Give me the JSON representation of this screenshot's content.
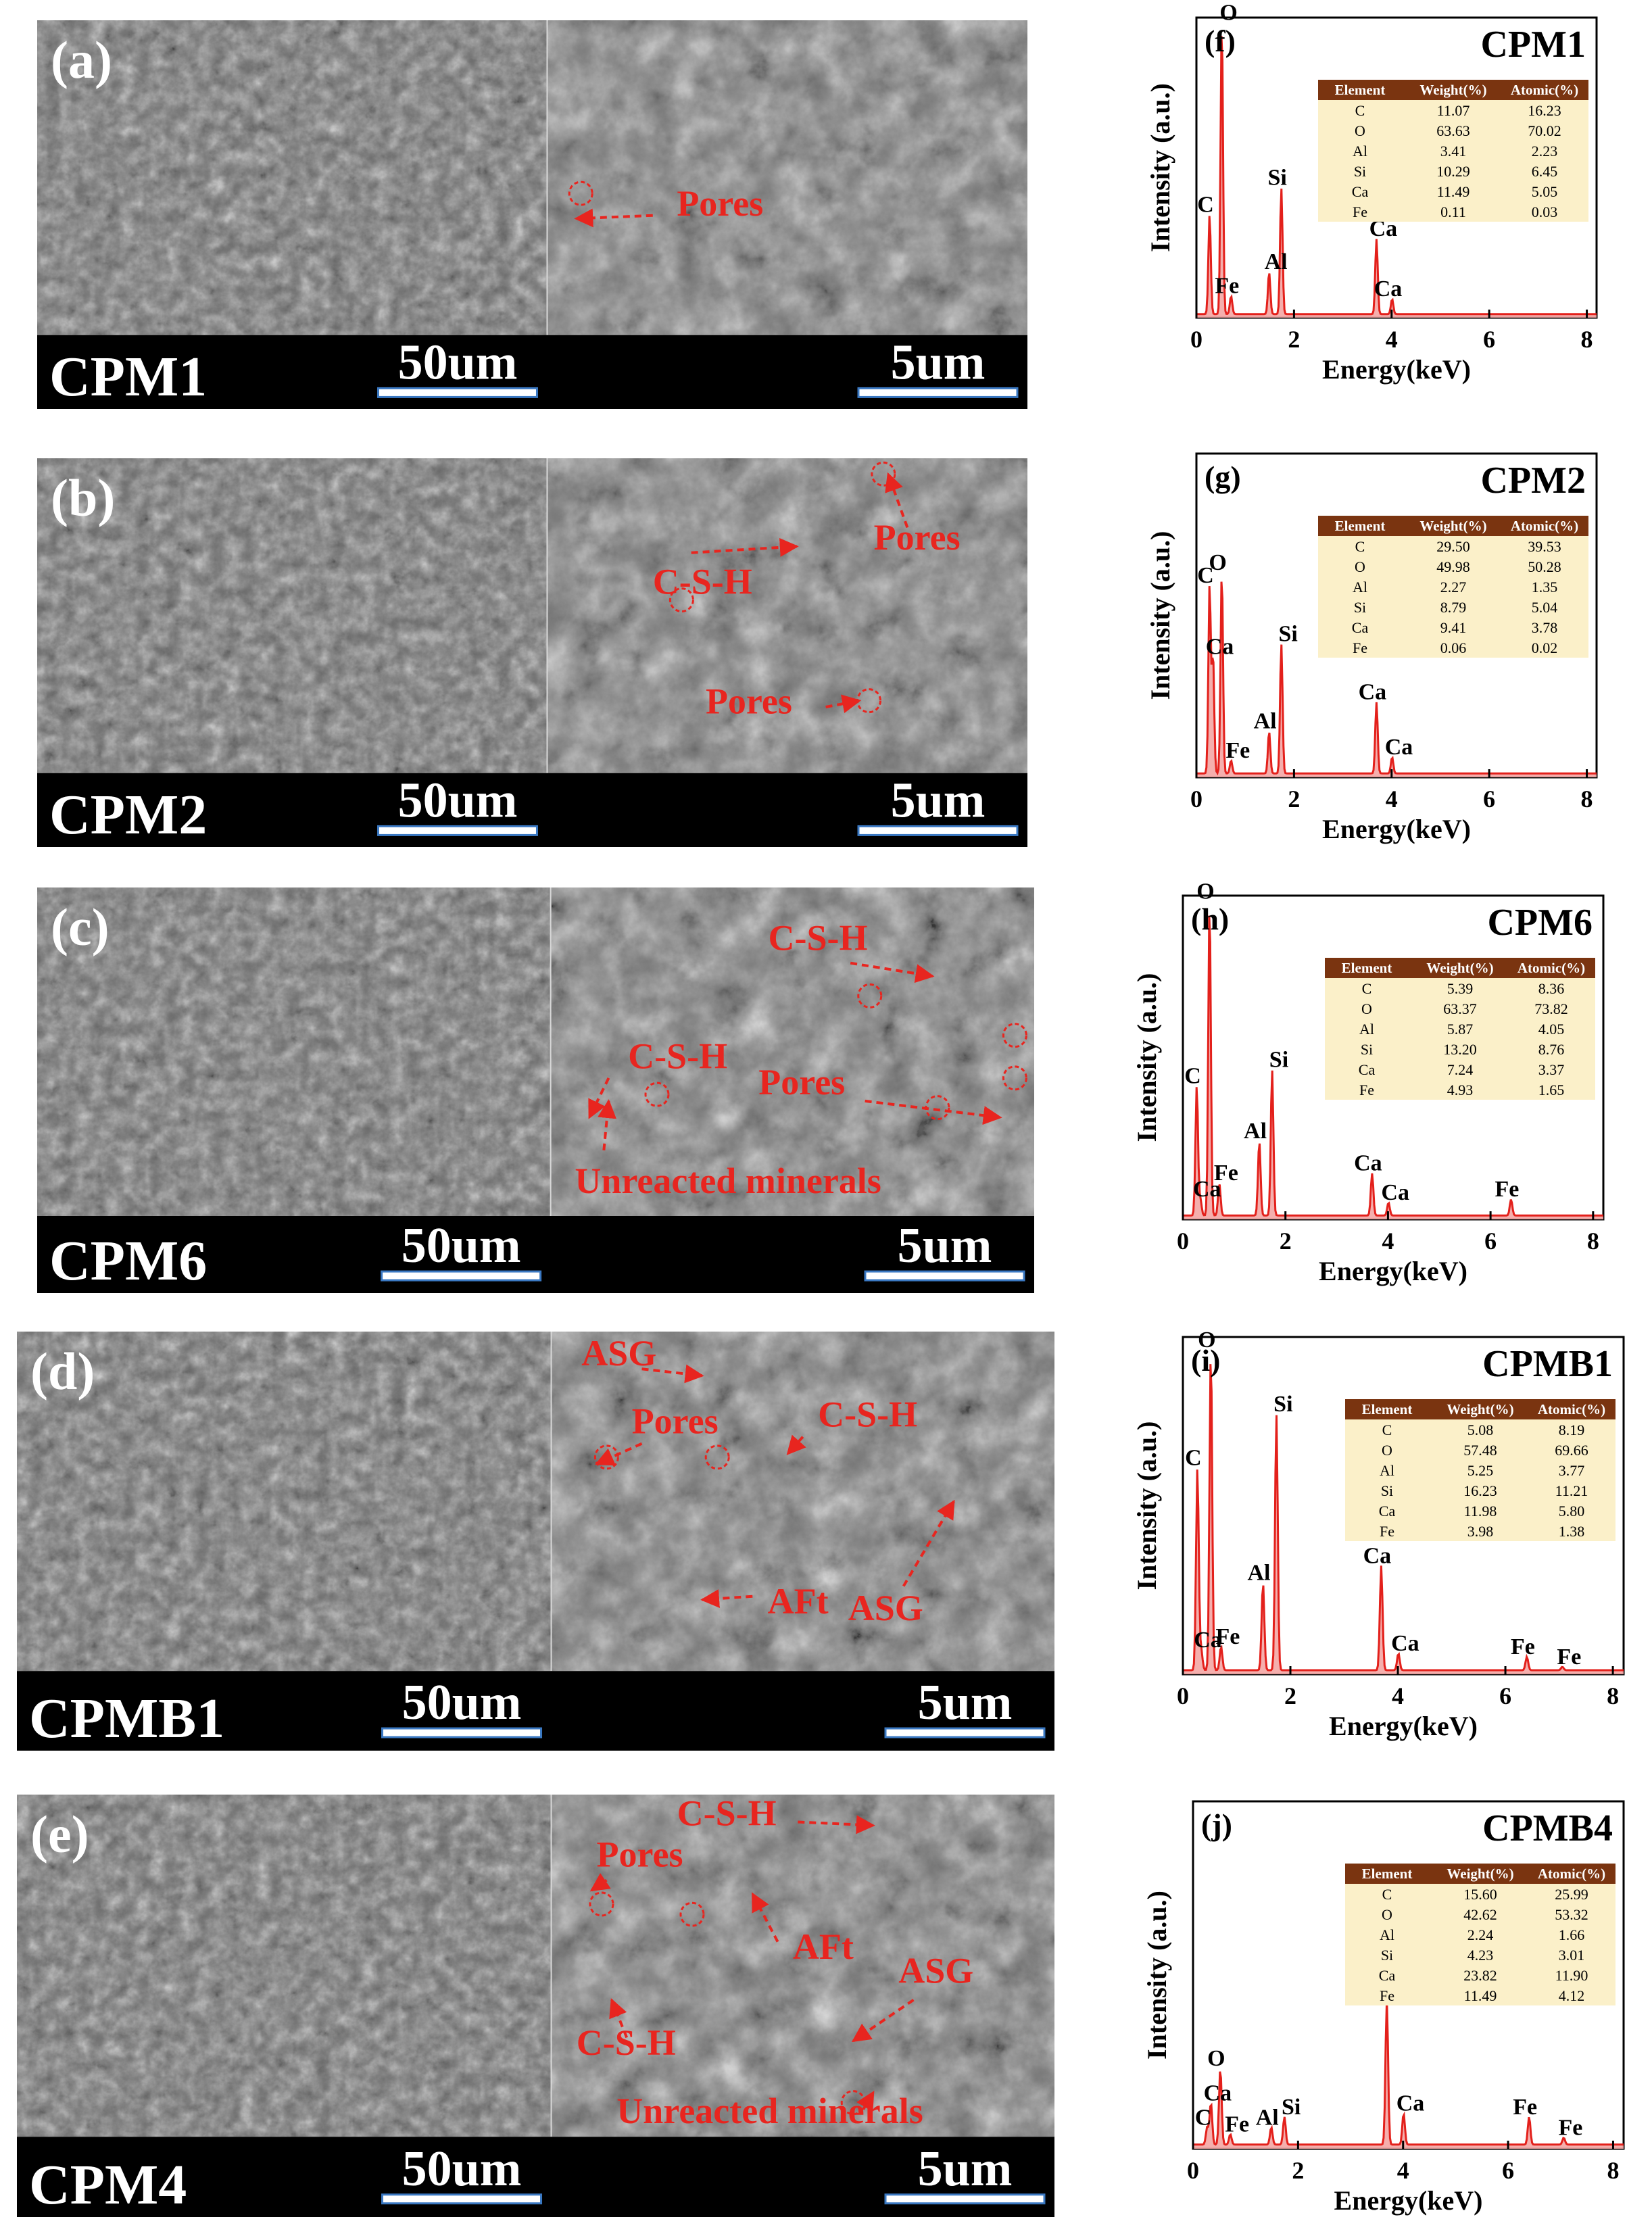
{
  "rows": [
    {
      "sem": {
        "panel": "(a)",
        "name": "CPM1",
        "scale_low": "50um",
        "scale_high": "5um",
        "annotations": [
          {
            "text": "Pores"
          }
        ]
      },
      "eds": {
        "panel": "(f)",
        "sample": "CPM1",
        "table": {
          "headers": [
            "Element",
            "Weight(%)",
            "Atomic(%)"
          ],
          "rows": [
            [
              "C",
              "11.07",
              "16.23"
            ],
            [
              "O",
              "63.63",
              "70.02"
            ],
            [
              "Al",
              "3.41",
              "2.23"
            ],
            [
              "Si",
              "10.29",
              "6.45"
            ],
            [
              "Ca",
              "11.49",
              "5.05"
            ],
            [
              "Fe",
              "0.11",
              "0.03"
            ]
          ]
        },
        "peaks": [
          {
            "label": "C",
            "energy": 0.27,
            "intensity": 0.33
          },
          {
            "label": "O",
            "energy": 0.52,
            "intensity": 0.97
          },
          {
            "label": "Fe",
            "energy": 0.71,
            "intensity": 0.06
          },
          {
            "label": "Al",
            "energy": 1.49,
            "intensity": 0.14
          },
          {
            "label": "Si",
            "energy": 1.74,
            "intensity": 0.42
          },
          {
            "label": "Ca",
            "energy": 3.69,
            "intensity": 0.25
          },
          {
            "label": "Ca",
            "energy": 4.01,
            "intensity": 0.05
          }
        ]
      }
    },
    {
      "sem": {
        "panel": "(b)",
        "name": "CPM2",
        "scale_low": "50um",
        "scale_high": "5um",
        "annotations": [
          {
            "text": "C-S-H"
          },
          {
            "text": "Pores"
          },
          {
            "text": "Pores"
          }
        ]
      },
      "eds": {
        "panel": "(g)",
        "sample": "CPM2",
        "table": {
          "headers": [
            "Element",
            "Weight(%)",
            "Atomic(%)"
          ],
          "rows": [
            [
              "C",
              "29.50",
              "39.53"
            ],
            [
              "O",
              "49.98",
              "50.28"
            ],
            [
              "Al",
              "2.27",
              "1.35"
            ],
            [
              "Si",
              "8.79",
              "5.04"
            ],
            [
              "Ca",
              "9.41",
              "3.78"
            ],
            [
              "Fe",
              "0.06",
              "0.02"
            ]
          ]
        },
        "peaks": [
          {
            "label": "C",
            "energy": 0.27,
            "intensity": 0.58
          },
          {
            "label": "Ca",
            "energy": 0.34,
            "intensity": 0.36
          },
          {
            "label": "O",
            "energy": 0.52,
            "intensity": 0.62
          },
          {
            "label": "Fe",
            "energy": 0.71,
            "intensity": 0.04
          },
          {
            "label": "Al",
            "energy": 1.49,
            "intensity": 0.13
          },
          {
            "label": "Si",
            "energy": 1.74,
            "intensity": 0.4
          },
          {
            "label": "Ca",
            "energy": 3.69,
            "intensity": 0.22
          },
          {
            "label": "Ca",
            "energy": 4.01,
            "intensity": 0.05
          }
        ]
      }
    },
    {
      "sem": {
        "panel": "(c)",
        "name": "CPM6",
        "scale_low": "50um",
        "scale_high": "5um",
        "annotations": [
          {
            "text": "C-S-H"
          },
          {
            "text": "C-S-H"
          },
          {
            "text": "Pores"
          },
          {
            "text": "Unreacted minerals"
          }
        ]
      },
      "eds": {
        "panel": "(h)",
        "sample": "CPM6",
        "table": {
          "headers": [
            "Element",
            "Weight(%)",
            "Atomic(%)"
          ],
          "rows": [
            [
              "C",
              "5.39",
              "8.36"
            ],
            [
              "O",
              "63.37",
              "73.82"
            ],
            [
              "Al",
              "5.87",
              "4.05"
            ],
            [
              "Si",
              "13.20",
              "8.76"
            ],
            [
              "Ca",
              "7.24",
              "3.37"
            ],
            [
              "Fe",
              "4.93",
              "1.65"
            ]
          ]
        },
        "peaks": [
          {
            "label": "C",
            "energy": 0.27,
            "intensity": 0.4
          },
          {
            "label": "Ca",
            "energy": 0.34,
            "intensity": 0.05
          },
          {
            "label": "O",
            "energy": 0.52,
            "intensity": 0.97
          },
          {
            "label": "Fe",
            "energy": 0.71,
            "intensity": 0.1
          },
          {
            "label": "Al",
            "energy": 1.49,
            "intensity": 0.23
          },
          {
            "label": "Si",
            "energy": 1.74,
            "intensity": 0.45
          },
          {
            "label": "Ca",
            "energy": 3.69,
            "intensity": 0.13
          },
          {
            "label": "Ca",
            "energy": 4.01,
            "intensity": 0.04
          },
          {
            "label": "Fe",
            "energy": 6.4,
            "intensity": 0.05
          }
        ]
      }
    },
    {
      "sem": {
        "panel": "(d)",
        "name": "CPMB1",
        "scale_low": "50um",
        "scale_high": "5um",
        "annotations": [
          {
            "text": "ASG"
          },
          {
            "text": "Pores"
          },
          {
            "text": "C-S-H"
          },
          {
            "text": "AFt"
          },
          {
            "text": "ASG"
          }
        ]
      },
      "eds": {
        "panel": "(i)",
        "sample": "CPMB1",
        "table": {
          "headers": [
            "Element",
            "Weight(%)",
            "Atomic(%)"
          ],
          "rows": [
            [
              "C",
              "5.08",
              "8.19"
            ],
            [
              "O",
              "57.48",
              "69.66"
            ],
            [
              "Al",
              "5.25",
              "3.77"
            ],
            [
              "Si",
              "16.23",
              "11.21"
            ],
            [
              "Ca",
              "11.98",
              "5.80"
            ],
            [
              "Fe",
              "3.98",
              "1.38"
            ]
          ]
        },
        "peaks": [
          {
            "label": "C",
            "energy": 0.27,
            "intensity": 0.6
          },
          {
            "label": "Ca",
            "energy": 0.34,
            "intensity": 0.06
          },
          {
            "label": "O",
            "energy": 0.52,
            "intensity": 0.95
          },
          {
            "label": "Fe",
            "energy": 0.71,
            "intensity": 0.07
          },
          {
            "label": "Al",
            "energy": 1.49,
            "intensity": 0.26
          },
          {
            "label": "Si",
            "energy": 1.74,
            "intensity": 0.76
          },
          {
            "label": "Ca",
            "energy": 3.69,
            "intensity": 0.31
          },
          {
            "label": "Ca",
            "energy": 4.01,
            "intensity": 0.05
          },
          {
            "label": "Fe",
            "energy": 6.4,
            "intensity": 0.04
          },
          {
            "label": "Fe",
            "energy": 7.06,
            "intensity": 0.01
          }
        ]
      }
    },
    {
      "sem": {
        "panel": "(e)",
        "name": "CPM4",
        "scale_low": "50um",
        "scale_high": "5um",
        "annotations": [
          {
            "text": "C-S-H"
          },
          {
            "text": "Pores"
          },
          {
            "text": "AFt"
          },
          {
            "text": "ASG"
          },
          {
            "text": "C-S-H"
          },
          {
            "text": "Unreacted minerals"
          }
        ]
      },
      "eds": {
        "panel": "(j)",
        "sample": "CPMB4",
        "table": {
          "headers": [
            "Element",
            "Weight(%)",
            "Atomic(%)"
          ],
          "rows": [
            [
              "C",
              "15.60",
              "25.99"
            ],
            [
              "O",
              "42.62",
              "53.32"
            ],
            [
              "Al",
              "2.24",
              "1.66"
            ],
            [
              "Si",
              "4.23",
              "3.01"
            ],
            [
              "Ca",
              "23.82",
              "11.90"
            ],
            [
              "Fe",
              "11.49",
              "4.12"
            ]
          ]
        },
        "peaks": [
          {
            "label": "C",
            "energy": 0.27,
            "intensity": 0.05
          },
          {
            "label": "Ca",
            "energy": 0.34,
            "intensity": 0.12
          },
          {
            "label": "O",
            "energy": 0.52,
            "intensity": 0.22
          },
          {
            "label": "Fe",
            "energy": 0.71,
            "intensity": 0.03
          },
          {
            "label": "Al",
            "energy": 1.49,
            "intensity": 0.05
          },
          {
            "label": "Si",
            "energy": 1.74,
            "intensity": 0.08
          },
          {
            "label": "Ca",
            "energy": 3.69,
            "intensity": 0.42
          },
          {
            "label": "Ca",
            "energy": 4.01,
            "intensity": 0.09
          },
          {
            "label": "Fe",
            "energy": 6.4,
            "intensity": 0.08
          },
          {
            "label": "Fe",
            "energy": 7.06,
            "intensity": 0.02
          }
        ]
      }
    }
  ],
  "eds_axes": {
    "xlabel": "Energy(keV)",
    "ylabel": "Intensity (a.u.)",
    "xlim": [
      0,
      8.2
    ],
    "xticks": [
      "0",
      "2",
      "4",
      "6",
      "8"
    ]
  },
  "colors": {
    "spectrum_line": "#e3201b",
    "spectrum_fill": "#f4a6a4",
    "table_header": "#7a3410",
    "table_body": "#fbf0c9",
    "annotation": "#e8251f"
  },
  "chart_data": [
    {
      "type": "area",
      "title": "CPM1",
      "xlabel": "Energy(keV)",
      "ylabel": "Intensity (a.u.)",
      "x": [
        0.27,
        0.52,
        1.49,
        1.74,
        3.69
      ],
      "series": [
        {
          "name": "CPM1",
          "values": [
            0.33,
            0.97,
            0.14,
            0.42,
            0.25
          ]
        }
      ]
    },
    {
      "type": "area",
      "title": "CPM2",
      "xlabel": "Energy(keV)",
      "ylabel": "Intensity (a.u.)",
      "x": [
        0.27,
        0.52,
        1.49,
        1.74,
        3.69
      ],
      "series": [
        {
          "name": "CPM2",
          "values": [
            0.58,
            0.62,
            0.13,
            0.4,
            0.22
          ]
        }
      ]
    },
    {
      "type": "area",
      "title": "CPM6",
      "xlabel": "Energy(keV)",
      "ylabel": "Intensity (a.u.)",
      "x": [
        0.27,
        0.52,
        1.49,
        1.74,
        3.69,
        6.4
      ],
      "series": [
        {
          "name": "CPM6",
          "values": [
            0.4,
            0.97,
            0.23,
            0.45,
            0.13,
            0.05
          ]
        }
      ]
    },
    {
      "type": "area",
      "title": "CPMB1",
      "xlabel": "Energy(keV)",
      "ylabel": "Intensity (a.u.)",
      "x": [
        0.27,
        0.52,
        1.49,
        1.74,
        3.69,
        6.4
      ],
      "series": [
        {
          "name": "CPMB1",
          "values": [
            0.6,
            0.95,
            0.26,
            0.76,
            0.31,
            0.04
          ]
        }
      ]
    },
    {
      "type": "area",
      "title": "CPMB4",
      "xlabel": "Energy(keV)",
      "ylabel": "Intensity (a.u.)",
      "x": [
        0.27,
        0.52,
        1.49,
        1.74,
        3.69,
        6.4
      ],
      "series": [
        {
          "name": "CPMB4",
          "values": [
            0.05,
            0.22,
            0.05,
            0.08,
            0.42,
            0.08
          ]
        }
      ]
    }
  ]
}
